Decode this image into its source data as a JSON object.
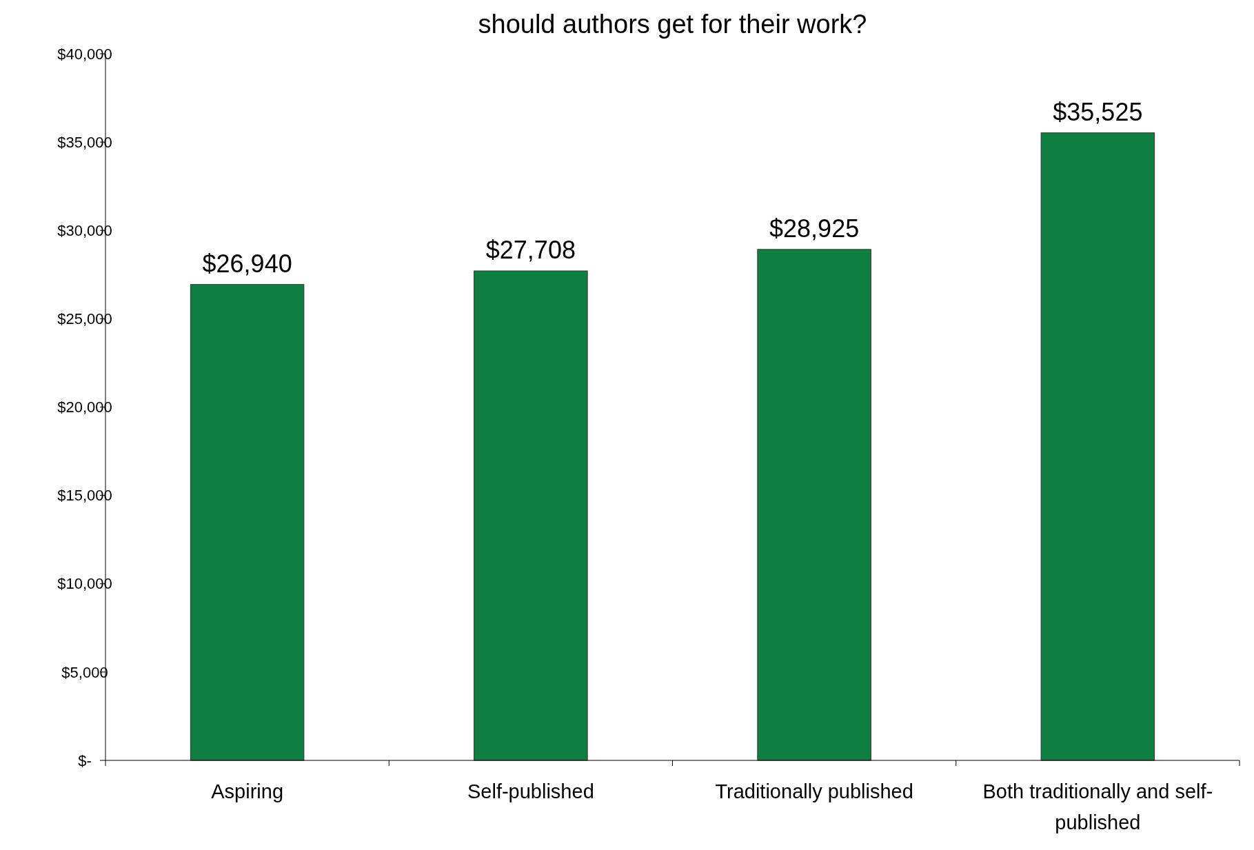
{
  "chart_data": {
    "type": "bar",
    "title": "should authors get for their work?",
    "categories": [
      "Aspiring",
      "Self-published",
      "Traditionally published",
      "Both traditionally and self-published"
    ],
    "values": [
      26940,
      27708,
      28925,
      35525
    ],
    "color": "#0e7f40",
    "ylim": [
      0,
      40000
    ],
    "yticks": [
      {
        "value": 0,
        "label": "$-"
      },
      {
        "value": 5000,
        "label": "$5,000"
      },
      {
        "value": 10000,
        "label": "$10,000"
      },
      {
        "value": 15000,
        "label": "$15,000"
      },
      {
        "value": 20000,
        "label": "$20,000"
      },
      {
        "value": 25000,
        "label": "$25,000"
      },
      {
        "value": 30000,
        "label": "$30,000"
      },
      {
        "value": 35000,
        "label": "$35,000"
      },
      {
        "value": 40000,
        "label": "$40,000"
      }
    ],
    "value_labels": [
      "$26,940",
      "$27,708",
      "$28,925",
      "$35,525"
    ],
    "grid": false
  }
}
